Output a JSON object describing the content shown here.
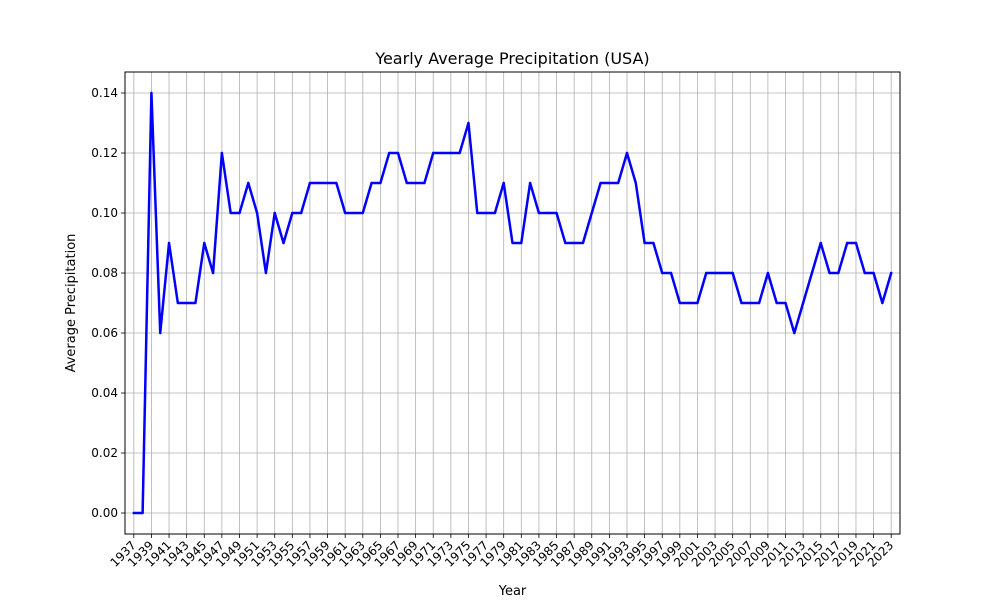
{
  "chart_data": {
    "type": "line",
    "title": "Yearly Average Precipitation (USA)",
    "xlabel": "Year",
    "ylabel": "Average Precipitation",
    "xlim": [
      1936,
      2024
    ],
    "ylim": [
      -0.007,
      0.147
    ],
    "grid": true,
    "x_ticks": [
      1937,
      1939,
      1941,
      1943,
      1945,
      1947,
      1949,
      1951,
      1953,
      1955,
      1957,
      1959,
      1961,
      1963,
      1965,
      1967,
      1969,
      1971,
      1973,
      1975,
      1977,
      1979,
      1981,
      1983,
      1985,
      1987,
      1989,
      1991,
      1993,
      1995,
      1997,
      1999,
      2001,
      2003,
      2005,
      2007,
      2009,
      2011,
      2013,
      2015,
      2017,
      2019,
      2021,
      2023
    ],
    "y_ticks": [
      0.0,
      0.02,
      0.04,
      0.06,
      0.08,
      0.1,
      0.12,
      0.14
    ],
    "y_tick_labels": [
      "0.00",
      "0.02",
      "0.04",
      "0.06",
      "0.08",
      "0.10",
      "0.12",
      "0.14"
    ],
    "series": [
      {
        "color": "#0000ff",
        "x": [
          1937,
          1938,
          1939,
          1940,
          1941,
          1942,
          1943,
          1944,
          1945,
          1946,
          1947,
          1948,
          1949,
          1950,
          1951,
          1952,
          1953,
          1954,
          1955,
          1956,
          1957,
          1958,
          1959,
          1960,
          1961,
          1962,
          1963,
          1964,
          1965,
          1966,
          1967,
          1968,
          1969,
          1970,
          1971,
          1972,
          1973,
          1974,
          1975,
          1976,
          1977,
          1978,
          1979,
          1980,
          1981,
          1982,
          1983,
          1984,
          1985,
          1986,
          1987,
          1988,
          1989,
          1990,
          1991,
          1992,
          1993,
          1994,
          1995,
          1996,
          1997,
          1998,
          1999,
          2000,
          2001,
          2002,
          2003,
          2004,
          2005,
          2006,
          2007,
          2008,
          2009,
          2010,
          2011,
          2012,
          2013,
          2014,
          2015,
          2016,
          2017,
          2018,
          2019,
          2020,
          2021,
          2022,
          2023
        ],
        "values": [
          0.0,
          0.0,
          0.14,
          0.06,
          0.09,
          0.07,
          0.07,
          0.07,
          0.09,
          0.08,
          0.12,
          0.1,
          0.1,
          0.11,
          0.1,
          0.08,
          0.1,
          0.09,
          0.1,
          0.1,
          0.11,
          0.11,
          0.11,
          0.11,
          0.1,
          0.1,
          0.1,
          0.11,
          0.11,
          0.12,
          0.12,
          0.11,
          0.11,
          0.11,
          0.12,
          0.12,
          0.12,
          0.12,
          0.13,
          0.1,
          0.1,
          0.1,
          0.11,
          0.09,
          0.09,
          0.11,
          0.1,
          0.1,
          0.1,
          0.09,
          0.09,
          0.09,
          0.1,
          0.11,
          0.11,
          0.11,
          0.12,
          0.11,
          0.09,
          0.09,
          0.08,
          0.08,
          0.07,
          0.07,
          0.07,
          0.08,
          0.08,
          0.08,
          0.08,
          0.07,
          0.07,
          0.07,
          0.08,
          0.07,
          0.07,
          0.06,
          0.07,
          0.08,
          0.09,
          0.08,
          0.08,
          0.09,
          0.09,
          0.08,
          0.08,
          0.07,
          0.08
        ]
      }
    ]
  }
}
